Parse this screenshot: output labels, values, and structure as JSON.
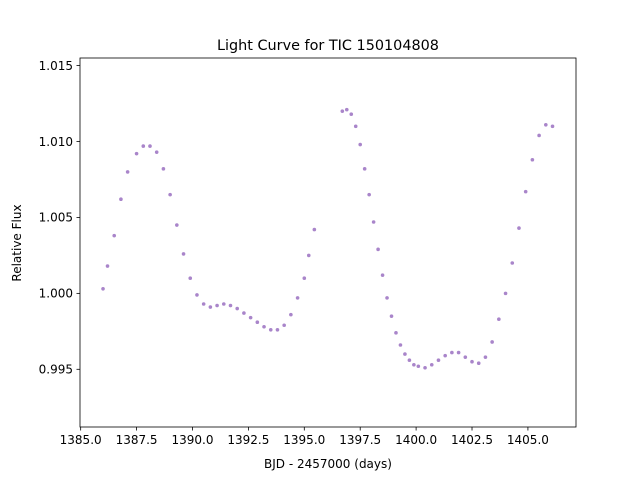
{
  "chart_data": {
    "type": "scatter",
    "title": "Light Curve for TIC 150104808",
    "xlabel": "BJD - 2457000 (days)",
    "ylabel": "Relative Flux",
    "xlim": [
      1384.97,
      1407.15
    ],
    "ylim": [
      0.9912,
      1.0155
    ],
    "x_ticks": [
      1385.0,
      1387.5,
      1390.0,
      1392.5,
      1395.0,
      1397.5,
      1400.0,
      1402.5,
      1405.0
    ],
    "x_tick_labels": [
      "1385.0",
      "1387.5",
      "1390.0",
      "1392.5",
      "1395.0",
      "1397.5",
      "1400.0",
      "1402.5",
      "1405.0"
    ],
    "y_ticks": [
      0.995,
      1.0,
      1.005,
      1.01,
      1.015
    ],
    "y_tick_labels": [
      "0.995",
      "1.000",
      "1.005",
      "1.010",
      "1.015"
    ],
    "grid": false,
    "legend": "none",
    "marker_color": "#9467bd",
    "series": [
      {
        "values_note": "",
        "segments": [
          {
            "x": [
              1386.0,
              1386.2,
              1386.5,
              1386.8,
              1387.1,
              1387.5,
              1387.8,
              1388.1,
              1388.4,
              1388.7,
              1389.0,
              1389.3,
              1389.6,
              1389.9,
              1390.2,
              1390.5,
              1390.8,
              1391.1,
              1391.4,
              1391.7,
              1392.0,
              1392.3,
              1392.6,
              1392.9,
              1393.2,
              1393.5,
              1393.8,
              1394.1,
              1394.4,
              1394.7,
              1395.0,
              1395.2,
              1395.45
            ],
            "y": [
              1.0003,
              1.0018,
              1.0038,
              1.0062,
              1.008,
              1.0092,
              1.0097,
              1.0097,
              1.0093,
              1.0082,
              1.0065,
              1.0045,
              1.0026,
              1.001,
              0.9999,
              0.9993,
              0.9991,
              0.9992,
              0.9993,
              0.9992,
              0.999,
              0.9987,
              0.9984,
              0.9981,
              0.9978,
              0.9976,
              0.9976,
              0.9979,
              0.9986,
              0.9997,
              1.001,
              1.0025,
              1.0042
            ]
          },
          {
            "x": [
              1396.7,
              1396.9,
              1397.1,
              1397.3,
              1397.5,
              1397.7,
              1397.9,
              1398.1,
              1398.3,
              1398.5,
              1398.7,
              1398.9,
              1399.1,
              1399.3,
              1399.5,
              1399.7,
              1399.9,
              1400.1,
              1400.4,
              1400.7,
              1401.0,
              1401.3,
              1401.6,
              1401.9,
              1402.2,
              1402.5,
              1402.8,
              1403.1,
              1403.4,
              1403.7,
              1404.0,
              1404.3,
              1404.6,
              1404.9,
              1405.2,
              1405.5,
              1405.8,
              1406.1
            ],
            "y": [
              1.012,
              1.0121,
              1.0118,
              1.011,
              1.0098,
              1.0082,
              1.0065,
              1.0047,
              1.0029,
              1.0012,
              0.9997,
              0.9985,
              0.9974,
              0.9966,
              0.996,
              0.9956,
              0.9953,
              0.9952,
              0.9951,
              0.9953,
              0.9956,
              0.9959,
              0.9961,
              0.9961,
              0.9958,
              0.9955,
              0.9954,
              0.9958,
              0.9968,
              0.9983,
              1.0,
              1.002,
              1.0043,
              1.0067,
              1.0088,
              1.0104,
              1.0111,
              1.011
            ]
          }
        ]
      }
    ]
  }
}
